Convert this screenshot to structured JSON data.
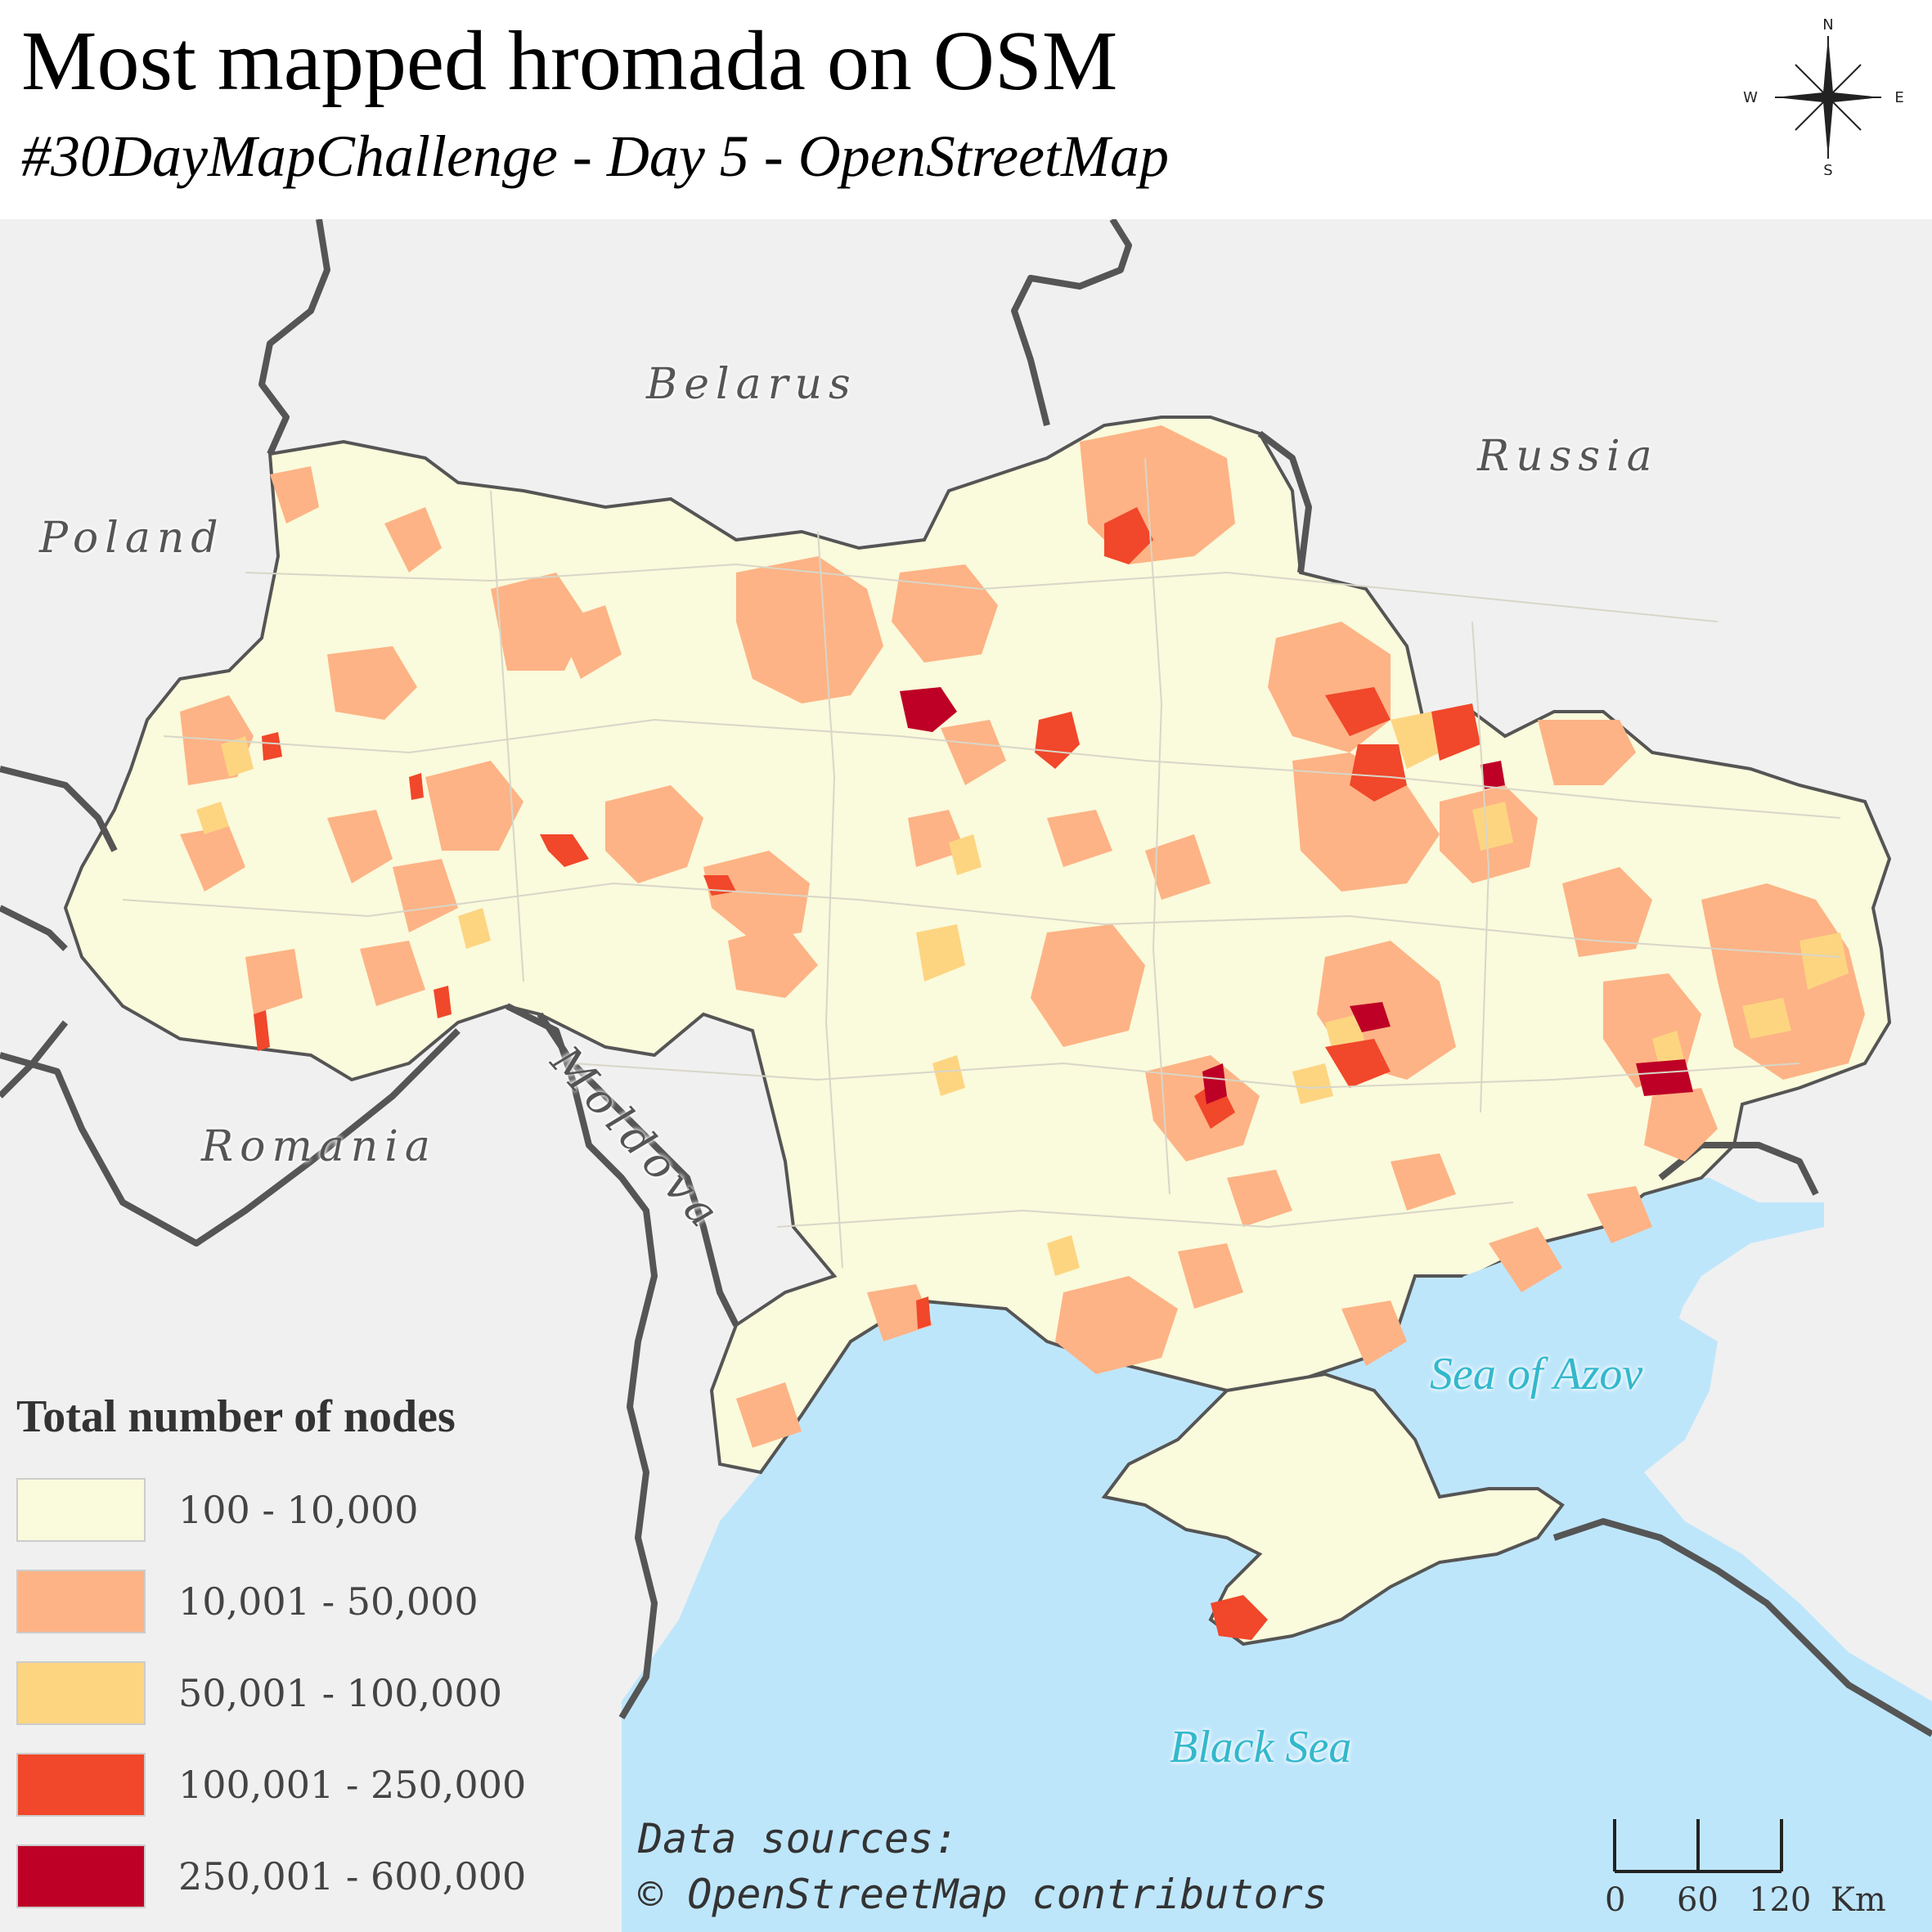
{
  "header": {
    "title": "Most mapped hromada on OSM",
    "subtitle": "#30DayMapChallenge - Day 5 - OpenStreetMap"
  },
  "compass": {
    "n": "N",
    "s": "S",
    "e": "E",
    "w": "W"
  },
  "countries": {
    "belarus": "Belarus",
    "russia": "Russia",
    "poland": "Poland",
    "romania": "Romania",
    "moldova": "Moldova"
  },
  "seas": {
    "azov": "Sea of Azov",
    "black": "Black Sea"
  },
  "legend": {
    "title": "Total number of nodes",
    "classes": [
      {
        "label": "100 - 10,000",
        "color": "#fafadc"
      },
      {
        "label": "10,001 - 50,000",
        "color": "#fdb385"
      },
      {
        "label": "50,001 - 100,000",
        "color": "#fdd581"
      },
      {
        "label": "100,001 - 250,000",
        "color": "#f1472a"
      },
      {
        "label": "250,001 - 600,000",
        "color": "#be0026"
      }
    ]
  },
  "sources": {
    "line1": "Data sources:",
    "line2": "© OpenStreetMap contributors"
  },
  "scale": {
    "labels": [
      "0",
      "60",
      "120"
    ],
    "unit": "Km"
  },
  "colors": {
    "land_outside": "#f0f0f0",
    "water": "#bee6fb",
    "border": "#555555"
  }
}
